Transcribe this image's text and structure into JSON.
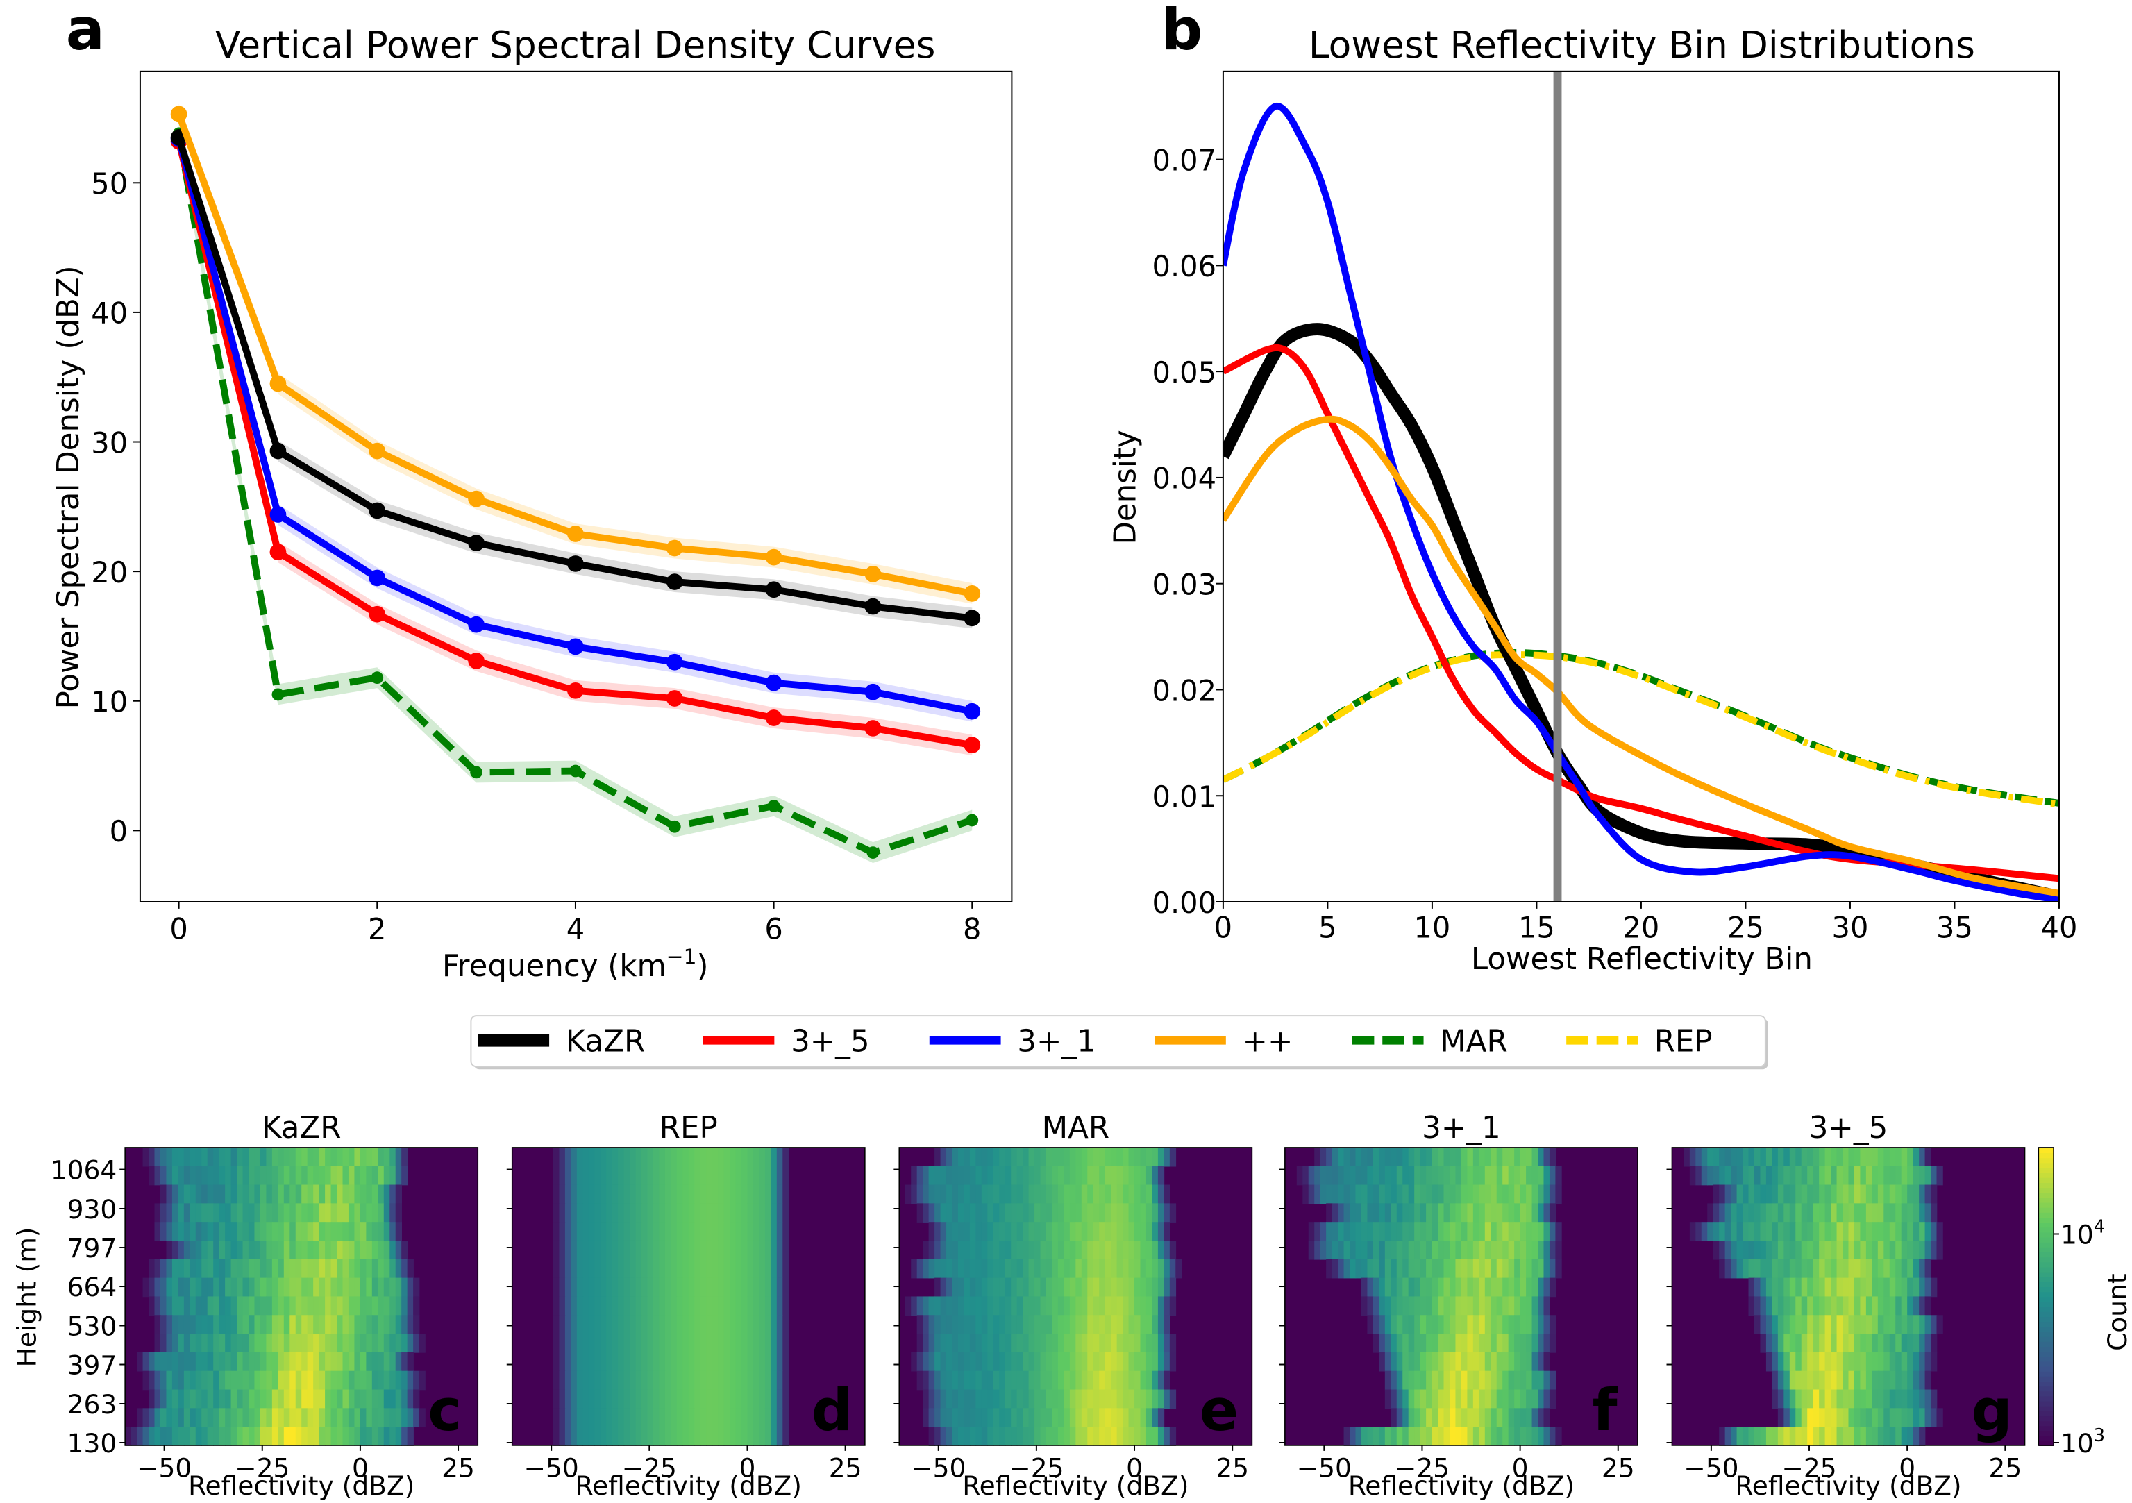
{
  "legend": {
    "entries": [
      {
        "label": "KaZR",
        "color": "#000000",
        "dash": false
      },
      {
        "label": "3+_5",
        "color": "#ff0000",
        "dash": false
      },
      {
        "label": "3+_1",
        "color": "#0000ff",
        "dash": false
      },
      {
        "label": "++",
        "color": "#ffa500",
        "dash": false
      },
      {
        "label": "MAR",
        "color": "#008000",
        "dash": true
      },
      {
        "label": "REP",
        "color": "#ffd700",
        "dash": true
      }
    ]
  },
  "chart_data": [
    {
      "panel_letter": "a",
      "type": "line",
      "title": "Vertical Power Spectral Density Curves",
      "xlabel": "Frequency (km",
      "xlabel_sup": "−1",
      "xlabel_end": ")",
      "ylabel": "Power Spectral Density (dBZ)",
      "xlim": [
        -0.39,
        8.4
      ],
      "ylim": [
        -5.5,
        58.6
      ],
      "xticks": [
        "0",
        "2",
        "4",
        "6",
        "8"
      ],
      "yticks": [
        "0",
        "10",
        "20",
        "30",
        "40",
        "50"
      ],
      "x": [
        0,
        1,
        2,
        3,
        4,
        5,
        6,
        7,
        8
      ],
      "band_halfwidth": 0.8,
      "series": [
        {
          "name": "MAR",
          "color": "#008000",
          "band": "#c8e6c8",
          "dash": true,
          "values": [
            53.8,
            10.5,
            11.8,
            4.5,
            4.6,
            0.3,
            1.9,
            -1.7,
            0.8
          ]
        },
        {
          "name": "3+_5",
          "color": "#ff0000",
          "band": "#ffd0d0",
          "dash": false,
          "values": [
            53.2,
            21.5,
            16.7,
            13.1,
            10.8,
            10.2,
            8.7,
            7.9,
            6.6
          ]
        },
        {
          "name": "3+_1",
          "color": "#0000ff",
          "band": "#d4d4ff",
          "dash": false,
          "values": [
            53.4,
            24.4,
            19.5,
            15.9,
            14.2,
            13.0,
            11.4,
            10.7,
            9.2
          ]
        },
        {
          "name": "KaZR",
          "color": "#000000",
          "band": "#d4d4d4",
          "dash": false,
          "values": [
            53.5,
            29.3,
            24.7,
            22.2,
            20.6,
            19.2,
            18.6,
            17.3,
            16.4
          ]
        },
        {
          "name": "++",
          "color": "#ffa500",
          "band": "#ffecc8",
          "dash": false,
          "values": [
            55.3,
            34.5,
            29.3,
            25.6,
            22.9,
            21.8,
            21.1,
            19.8,
            18.3
          ]
        }
      ]
    },
    {
      "panel_letter": "b",
      "type": "line",
      "title": "Lowest Reflectivity Bin Distributions",
      "xlabel": "Lowest Reflectivity Bin",
      "ylabel": "Density",
      "xlim": [
        0,
        40
      ],
      "ylim": [
        0,
        0.0783
      ],
      "xticks": [
        "0",
        "5",
        "10",
        "15",
        "20",
        "25",
        "30",
        "35",
        "40"
      ],
      "yticks": [
        "0.00",
        "0.01",
        "0.02",
        "0.03",
        "0.04",
        "0.05",
        "0.06",
        "0.07"
      ],
      "vline": 16,
      "series": [
        {
          "name": "MAR",
          "color": "#008000",
          "dash": true,
          "x": [
            0,
            2,
            4,
            6,
            8,
            10,
            12,
            14,
            16,
            18,
            20,
            22,
            25,
            28,
            30,
            33,
            36,
            40
          ],
          "values": [
            0.0115,
            0.0135,
            0.0158,
            0.0183,
            0.0205,
            0.0222,
            0.0232,
            0.0235,
            0.0232,
            0.0225,
            0.0213,
            0.0198,
            0.0175,
            0.015,
            0.0136,
            0.0118,
            0.0105,
            0.0093
          ]
        },
        {
          "name": "REP",
          "color": "#ffd700",
          "dash": true,
          "x": [
            0,
            2,
            4,
            6,
            8,
            10,
            12,
            14,
            16,
            18,
            20,
            22,
            25,
            28,
            30,
            33,
            36,
            40
          ],
          "values": [
            0.0115,
            0.0135,
            0.0157,
            0.0182,
            0.0204,
            0.0221,
            0.0231,
            0.0233,
            0.0231,
            0.0224,
            0.0212,
            0.0197,
            0.0174,
            0.0149,
            0.0135,
            0.0117,
            0.0104,
            0.0092
          ]
        },
        {
          "name": "KaZR",
          "color": "#000000",
          "dash": false,
          "width": 9,
          "x": [
            0,
            1,
            2,
            3,
            4.5,
            6,
            7,
            8,
            9,
            10,
            11,
            12,
            13,
            14,
            15,
            16,
            17,
            18,
            20,
            22,
            25,
            28,
            30,
            33,
            36,
            40
          ],
          "values": [
            0.042,
            0.046,
            0.05,
            0.053,
            0.054,
            0.053,
            0.051,
            0.048,
            0.045,
            0.041,
            0.036,
            0.031,
            0.026,
            0.022,
            0.018,
            0.014,
            0.011,
            0.0085,
            0.0065,
            0.0057,
            0.0055,
            0.0054,
            0.0048,
            0.0035,
            0.0022,
            0.0005
          ]
        },
        {
          "name": "3+_5",
          "color": "#ff0000",
          "dash": false,
          "x": [
            0,
            2,
            3,
            4,
            5,
            6,
            7,
            8,
            9,
            10,
            11,
            12,
            13,
            14,
            15,
            16,
            17,
            18,
            20,
            22,
            25,
            28,
            30,
            33,
            36,
            40
          ],
          "values": [
            0.05,
            0.052,
            0.052,
            0.05,
            0.046,
            0.042,
            0.038,
            0.034,
            0.029,
            0.025,
            0.021,
            0.018,
            0.016,
            0.014,
            0.0125,
            0.0115,
            0.0105,
            0.0097,
            0.0088,
            0.0077,
            0.0062,
            0.0047,
            0.004,
            0.0035,
            0.003,
            0.0022
          ]
        },
        {
          "name": "3+_1",
          "color": "#0000ff",
          "dash": false,
          "x": [
            0,
            1,
            2.5,
            4,
            5,
            6,
            7,
            8,
            9,
            10,
            11,
            12,
            13,
            14,
            15,
            16,
            17,
            18,
            20,
            22.5,
            25,
            28,
            30,
            33,
            35,
            38,
            40
          ],
          "values": [
            0.06,
            0.069,
            0.075,
            0.071,
            0.066,
            0.058,
            0.05,
            0.042,
            0.036,
            0.031,
            0.027,
            0.024,
            0.022,
            0.019,
            0.017,
            0.014,
            0.011,
            0.008,
            0.004,
            0.0028,
            0.0033,
            0.0043,
            0.0043,
            0.003,
            0.002,
            0.0008,
            0.0002
          ]
        },
        {
          "name": "++",
          "color": "#ffa500",
          "dash": false,
          "x": [
            0,
            2,
            3.5,
            5,
            6,
            7,
            8,
            9,
            10,
            11,
            12,
            13,
            14,
            15,
            16,
            17,
            18,
            20,
            22,
            25,
            28,
            30,
            33,
            36,
            40
          ],
          "values": [
            0.036,
            0.042,
            0.0445,
            0.0455,
            0.045,
            0.0435,
            0.041,
            0.038,
            0.0355,
            0.032,
            0.029,
            0.026,
            0.023,
            0.0215,
            0.0198,
            0.0175,
            0.016,
            0.0138,
            0.0118,
            0.0092,
            0.0068,
            0.0052,
            0.0038,
            0.0022,
            0.0008
          ]
        }
      ]
    },
    {
      "type": "heatmap",
      "ylabel": "Height (m)",
      "xlabel": "Reflectivity (dBZ)",
      "xlim": [
        -60,
        30
      ],
      "xticks": [
        "−50",
        "−25",
        "0",
        "25"
      ],
      "xtick_values": [
        -50,
        -25,
        0,
        25
      ],
      "yticks": [
        "130",
        "263",
        "397",
        "530",
        "664",
        "797",
        "930",
        "1064"
      ],
      "colorbar": {
        "label": "Count",
        "ticks": [
          {
            "base": "10",
            "exp": "3"
          },
          {
            "base": "10",
            "exp": "4"
          }
        ],
        "scale": "log"
      },
      "panels": [
        {
          "title": "KaZR",
          "letter": "c",
          "lo_top": -52,
          "lo_bot": -57,
          "hi_top": 10,
          "hi_bot": 15,
          "peak_top": -5,
          "peak_bot": -18,
          "noise": 0.14,
          "gap_rows": 0
        },
        {
          "title": "REP",
          "letter": "d",
          "lo_top": -50,
          "lo_bot": -50,
          "hi_top": 10,
          "hi_bot": 10,
          "peak_top": -10,
          "peak_bot": -10,
          "noise": 0.0,
          "gap_rows": 0
        },
        {
          "title": "MAR",
          "letter": "e",
          "lo_top": -56,
          "lo_bot": -56,
          "hi_top": 9,
          "hi_bot": 9,
          "peak_top": -8,
          "peak_bot": -8,
          "noise": 0.06,
          "gap_rows": 0
        },
        {
          "title": "3+_1",
          "letter": "f",
          "lo_top": -55,
          "lo_bot": -45,
          "hi_top": 9,
          "hi_bot": 8,
          "peak_top": -4,
          "peak_bot": -18,
          "noise": 0.12,
          "gap_rows": 7
        },
        {
          "title": "3+_5",
          "letter": "g",
          "lo_top": -55,
          "lo_bot": -45,
          "hi_top": 7,
          "hi_bot": 6,
          "peak_top": -10,
          "peak_bot": -25,
          "noise": 0.14,
          "gap_rows": 7
        }
      ]
    }
  ]
}
